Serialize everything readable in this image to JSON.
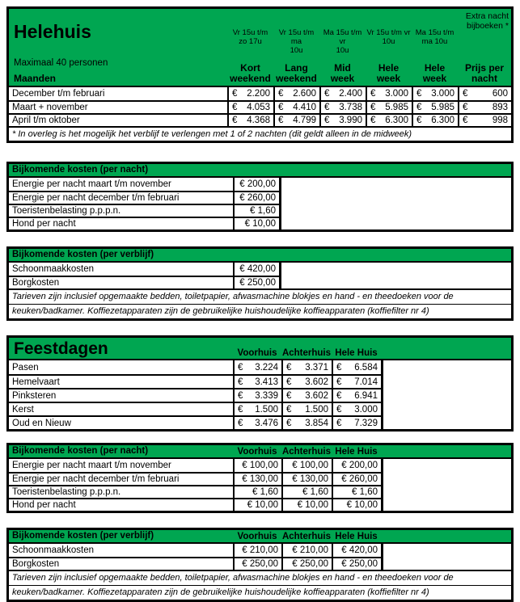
{
  "currency_symbol": "€",
  "colors": {
    "green": "#00a651",
    "border": "#000000",
    "text": "#000000",
    "background": "#ffffff"
  },
  "main_table": {
    "title": "Helehuis",
    "subtitle": "Maximaal 40 personen",
    "maanden_label": "Maanden",
    "extra_note": {
      "line1": "Extra nacht",
      "line2": "bijboeken *"
    },
    "time_headers": [
      {
        "line1": "Vr 15u t/m",
        "line2": "zo 17u"
      },
      {
        "line1": "Vr 15u t/m ma",
        "line2": "10u"
      },
      {
        "line1": "Ma 15u t/m vr",
        "line2": "10u"
      },
      {
        "line1": "Vr 15u t/m vr",
        "line2": "10u"
      },
      {
        "line1": "Ma 15u t/m",
        "line2": "ma 10u"
      }
    ],
    "col_headers": [
      {
        "line1": "Kort",
        "line2": "weekend"
      },
      {
        "line1": "Lang",
        "line2": "weekend"
      },
      {
        "line1": "Mid",
        "line2": "week"
      },
      {
        "line1": "Hele",
        "line2": "week"
      },
      {
        "line1": "Hele",
        "line2": "week"
      },
      {
        "line1": "Prijs per",
        "line2": "nacht"
      }
    ],
    "rows": [
      {
        "label": "December t/m februari",
        "values": [
          "2.200",
          "2.600",
          "2.400",
          "3.000",
          "3.000",
          "600"
        ]
      },
      {
        "label": "Maart + november",
        "values": [
          "4.053",
          "4.410",
          "3.738",
          "5.985",
          "5.985",
          "893"
        ]
      },
      {
        "label": "April t/m oktober",
        "values": [
          "4.368",
          "4.799",
          "3.990",
          "6.300",
          "6.300",
          "998"
        ]
      }
    ],
    "footnote": "* In overleg is het mogelijk het verblijf te verlengen met 1 of 2 nachten (dit geldt alleen in de midweek)"
  },
  "costs_per_night": {
    "title": "Bijkomende kosten (per nacht)",
    "rows": [
      {
        "label": "Energie per nacht maart t/m november",
        "values": [
          "€ 200,00"
        ]
      },
      {
        "label": "Energie per nacht december t/m februari",
        "values": [
          "€ 260,00"
        ]
      },
      {
        "label": "Toeristenbelasting p.p.p.n.",
        "values": [
          "€ 1,60"
        ]
      },
      {
        "label": "Hond per nacht",
        "values": [
          "€ 10,00"
        ]
      }
    ]
  },
  "costs_per_stay": {
    "title": "Bijkomende kosten (per verblijf)",
    "rows": [
      {
        "label": "Schoonmaakkosten",
        "values": [
          "€ 420,00"
        ]
      },
      {
        "label": "Borgkosten",
        "values": [
          "€ 250,00"
        ]
      }
    ],
    "footnote": [
      "Tarieven zijn inclusief opgemaakte bedden, toiletpapier, afwasmachine blokjes en hand - en theedoeken voor de",
      "keuken/badkamer. Koffiezetapparaten zijn de gebruikelijke huishoudelijke koffieapparaten (koffiefilter nr 4)"
    ]
  },
  "holidays": {
    "title": "Feestdagen",
    "col_headers": [
      "Voorhuis",
      "Achterhuis",
      "Hele Huis"
    ],
    "rows": [
      {
        "label": "Pasen",
        "values": [
          "3.224",
          "3.371",
          "6.584"
        ]
      },
      {
        "label": "Hemelvaart",
        "values": [
          "3.413",
          "3.602",
          "7.014"
        ]
      },
      {
        "label": "Pinksteren",
        "values": [
          "3.339",
          "3.602",
          "6.941"
        ]
      },
      {
        "label": "Kerst",
        "values": [
          "1.500",
          "1.500",
          "3.000"
        ]
      },
      {
        "label": "Oud en Nieuw",
        "values": [
          "3.476",
          "3.854",
          "7.329"
        ]
      }
    ]
  },
  "costs_per_night_split": {
    "title": "Bijkomende kosten (per nacht)",
    "col_headers": [
      "Voorhuis",
      "Achterhuis",
      "Hele Huis"
    ],
    "rows": [
      {
        "label": "Energie per nacht maart t/m november",
        "values": [
          "€ 100,00",
          "€ 100,00",
          "€ 200,00"
        ]
      },
      {
        "label": "Energie per nacht december t/m februari",
        "values": [
          "€ 130,00",
          "€ 130,00",
          "€ 260,00"
        ]
      },
      {
        "label": "Toeristenbelasting p.p.p.n.",
        "values": [
          "€ 1,60",
          "€ 1,60",
          "€ 1,60"
        ]
      },
      {
        "label": "Hond per nacht",
        "values": [
          "€ 10,00",
          "€ 10,00",
          "€ 10,00"
        ]
      }
    ]
  },
  "costs_per_stay_split": {
    "title": "Bijkomende kosten (per verblijf)",
    "col_headers": [
      "Voorhuis",
      "Achterhuis",
      "Hele Huis"
    ],
    "rows": [
      {
        "label": "Schoonmaakkosten",
        "values": [
          "€ 210,00",
          "€ 210,00",
          "€ 420,00"
        ]
      },
      {
        "label": "Borgkosten",
        "values": [
          "€ 250,00",
          "€ 250,00",
          "€ 250,00"
        ]
      }
    ],
    "footnote": [
      "Tarieven zijn inclusief opgemaakte bedden, toiletpapier, afwasmachine blokjes en hand - en theedoeken voor de",
      "keuken/badkamer. Koffiezetapparaten zijn de gebruikelijke huishoudelijke koffieapparaten (koffiefilter nr 4)"
    ]
  }
}
